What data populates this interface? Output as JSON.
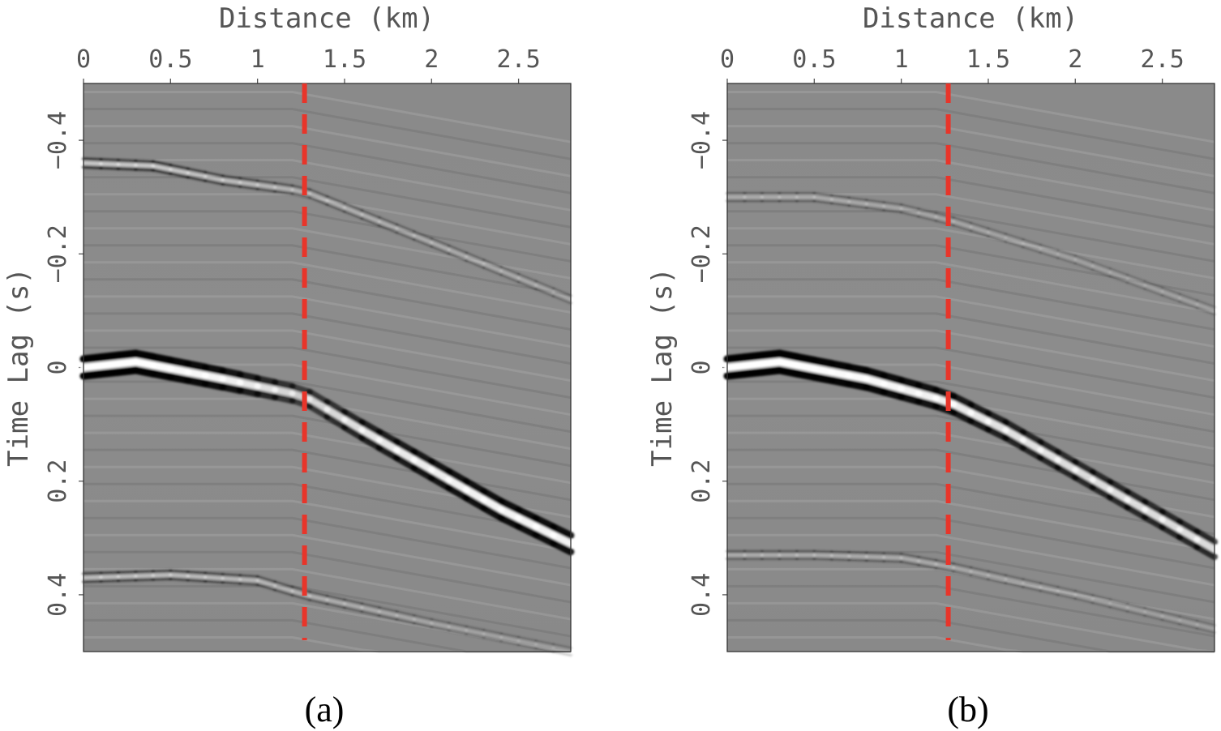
{
  "chart_data": [
    {
      "type": "heatmap",
      "panel_label": "(a)",
      "xlabel": "Distance (km)",
      "ylabel": "Time Lag (s)",
      "xlim": [
        0,
        2.8
      ],
      "ylim": [
        -0.5,
        0.5
      ],
      "xticks": [
        0,
        0.5,
        1,
        1.5,
        2,
        2.5
      ],
      "xtick_labels": [
        "0",
        "0.5",
        "1",
        "1.5",
        "2",
        "2.5"
      ],
      "yticks": [
        -0.4,
        -0.2,
        0,
        0.2,
        0.4
      ],
      "ytick_labels": [
        "−0.4",
        "−0.2",
        "0",
        "0.2",
        "0.4"
      ],
      "marker_line": {
        "x": 1.27,
        "style": "dashed",
        "color": "#e8352a"
      },
      "events": [
        {
          "name": "main",
          "x": [
            0,
            0.3,
            0.8,
            1.27,
            1.6,
            2.0,
            2.4,
            2.8
          ],
          "t": [
            0.0,
            -0.01,
            0.02,
            0.05,
            0.11,
            0.18,
            0.25,
            0.31
          ],
          "strength": [
            1.0,
            1.0,
            0.9,
            0.55,
            0.75,
            0.85,
            0.9,
            0.9
          ]
        },
        {
          "name": "upper",
          "x": [
            0,
            0.4,
            0.8,
            1.27,
            2.0,
            2.8
          ],
          "t": [
            -0.36,
            -0.355,
            -0.33,
            -0.31,
            -0.22,
            -0.12
          ],
          "strength": [
            0.55,
            0.55,
            0.45,
            0.35,
            0.3,
            0.25
          ]
        },
        {
          "name": "lower",
          "x": [
            0,
            0.5,
            1.0,
            1.27,
            2.0,
            2.8
          ],
          "t": [
            0.37,
            0.365,
            0.375,
            0.4,
            0.45,
            0.5
          ],
          "strength": [
            0.45,
            0.45,
            0.4,
            0.35,
            0.25,
            0.2
          ]
        }
      ]
    },
    {
      "type": "heatmap",
      "panel_label": "(b)",
      "xlabel": "Distance (km)",
      "ylabel": "Time Lag (s)",
      "xlim": [
        0,
        2.8
      ],
      "ylim": [
        -0.5,
        0.5
      ],
      "xticks": [
        0,
        0.5,
        1,
        1.5,
        2,
        2.5
      ],
      "xtick_labels": [
        "0",
        "0.5",
        "1",
        "1.5",
        "2",
        "2.5"
      ],
      "yticks": [
        -0.4,
        -0.2,
        0,
        0.2,
        0.4
      ],
      "ytick_labels": [
        "−0.4",
        "−0.2",
        "0",
        "0.2",
        "0.4"
      ],
      "marker_line": {
        "x": 1.27,
        "style": "dashed",
        "color": "#e8352a"
      },
      "events": [
        {
          "name": "main",
          "x": [
            0,
            0.3,
            0.8,
            1.27,
            1.6,
            2.0,
            2.4,
            2.8
          ],
          "t": [
            0.0,
            -0.01,
            0.02,
            0.06,
            0.11,
            0.18,
            0.25,
            0.32
          ],
          "strength": [
            1.0,
            1.0,
            0.95,
            0.85,
            0.75,
            0.7,
            0.7,
            0.7
          ]
        },
        {
          "name": "upper",
          "x": [
            0,
            0.5,
            1.0,
            1.27,
            2.0,
            2.8
          ],
          "t": [
            -0.3,
            -0.3,
            -0.28,
            -0.26,
            -0.19,
            -0.1
          ],
          "strength": [
            0.3,
            0.3,
            0.25,
            0.25,
            0.2,
            0.2
          ]
        },
        {
          "name": "lower",
          "x": [
            0,
            0.5,
            1.0,
            1.27,
            2.0,
            2.8
          ],
          "t": [
            0.33,
            0.33,
            0.335,
            0.35,
            0.4,
            0.46
          ],
          "strength": [
            0.3,
            0.3,
            0.3,
            0.28,
            0.22,
            0.2
          ]
        }
      ]
    }
  ]
}
